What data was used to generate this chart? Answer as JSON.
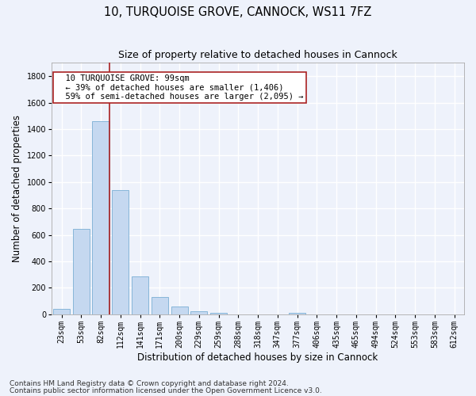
{
  "title_line1": "10, TURQUOISE GROVE, CANNOCK, WS11 7FZ",
  "title_line2": "Size of property relative to detached houses in Cannock",
  "xlabel": "Distribution of detached houses by size in Cannock",
  "ylabel": "Number of detached properties",
  "bar_labels": [
    "23sqm",
    "53sqm",
    "82sqm",
    "112sqm",
    "141sqm",
    "171sqm",
    "200sqm",
    "229sqm",
    "259sqm",
    "288sqm",
    "318sqm",
    "347sqm",
    "377sqm",
    "406sqm",
    "435sqm",
    "465sqm",
    "494sqm",
    "524sqm",
    "553sqm",
    "583sqm",
    "612sqm"
  ],
  "bar_values": [
    38,
    648,
    1462,
    938,
    285,
    128,
    58,
    22,
    10,
    0,
    0,
    0,
    10,
    0,
    0,
    0,
    0,
    0,
    0,
    0,
    0
  ],
  "bar_color": "#c5d8f0",
  "bar_edge_color": "#7aafd4",
  "bar_edge_width": 0.6,
  "vline_color": "#aa2222",
  "annotation_text": "  10 TURQUOISE GROVE: 99sqm\n  ← 39% of detached houses are smaller (1,406)\n  59% of semi-detached houses are larger (2,095) →",
  "annotation_box_facecolor": "#ffffff",
  "annotation_box_edgecolor": "#aa2222",
  "ylim": [
    0,
    1900
  ],
  "yticks": [
    0,
    200,
    400,
    600,
    800,
    1000,
    1200,
    1400,
    1600,
    1800
  ],
  "background_color": "#eef2fb",
  "grid_color": "#ffffff",
  "footer_line1": "Contains HM Land Registry data © Crown copyright and database right 2024.",
  "footer_line2": "Contains public sector information licensed under the Open Government Licence v3.0.",
  "title_fontsize": 10.5,
  "subtitle_fontsize": 9,
  "axis_label_fontsize": 8.5,
  "tick_fontsize": 7,
  "annotation_fontsize": 7.5,
  "footer_fontsize": 6.5
}
